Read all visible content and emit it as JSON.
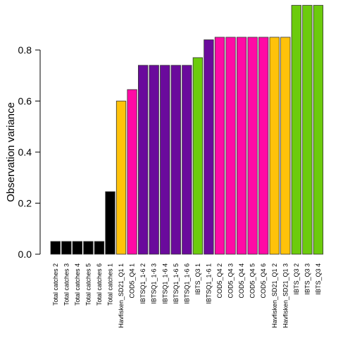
{
  "chart_data": {
    "type": "bar",
    "title": "",
    "xlabel": "",
    "ylabel": "Observation variance",
    "ylim": [
      0,
      0.97
    ],
    "yticks": [
      0.0,
      0.2,
      0.4,
      0.6,
      0.8
    ],
    "ytick_labels": [
      "0.0",
      "0.2",
      "0.4",
      "0.6",
      "0.8"
    ],
    "grid": false,
    "legend": "none",
    "categories": [
      "Total catches 2",
      "Total catches 3",
      "Total catches 4",
      "Total catches 5",
      "Total catches 6",
      "Total catches 1",
      "Havfisken_SD21_Q1 1",
      "COD5_Q4 1",
      "IBTSQ1_1-6 2",
      "IBTSQ1_1-6 3",
      "IBTSQ1_1-6 4",
      "IBTSQ1_1-6 5",
      "IBTSQ1_1-6 6",
      "IBTS_Q3 1",
      "IBTSQ1_1-6 1",
      "COD5_Q4 2",
      "COD5_Q4 3",
      "COD5_Q4 4",
      "COD5_Q4 5",
      "COD5_Q4 6",
      "Havfisken_SD21_Q1 2",
      "Havfisken_SD21_Q1 3",
      "IBTS_Q3 2",
      "IBTS_Q3 3",
      "IBTS_Q3 4"
    ],
    "values": [
      0.05,
      0.05,
      0.05,
      0.05,
      0.05,
      0.245,
      0.6,
      0.645,
      0.74,
      0.74,
      0.74,
      0.74,
      0.74,
      0.77,
      0.84,
      0.85,
      0.85,
      0.85,
      0.85,
      0.85,
      0.85,
      0.85,
      0.975,
      0.975,
      0.975
    ],
    "bar_colors": [
      "#000000",
      "#000000",
      "#000000",
      "#000000",
      "#000000",
      "#000000",
      "#FFC20A",
      "#FF0AA5",
      "#6A0A9C",
      "#6A0A9C",
      "#6A0A9C",
      "#6A0A9C",
      "#6A0A9C",
      "#6CCB0C",
      "#6A0A9C",
      "#FF0AA5",
      "#FF0AA5",
      "#FF0AA5",
      "#FF0AA5",
      "#FF0AA5",
      "#FFC20A",
      "#FFC20A",
      "#6CCB0C",
      "#6CCB0C",
      "#6CCB0C"
    ],
    "bar_outline_color": "#333333"
  }
}
